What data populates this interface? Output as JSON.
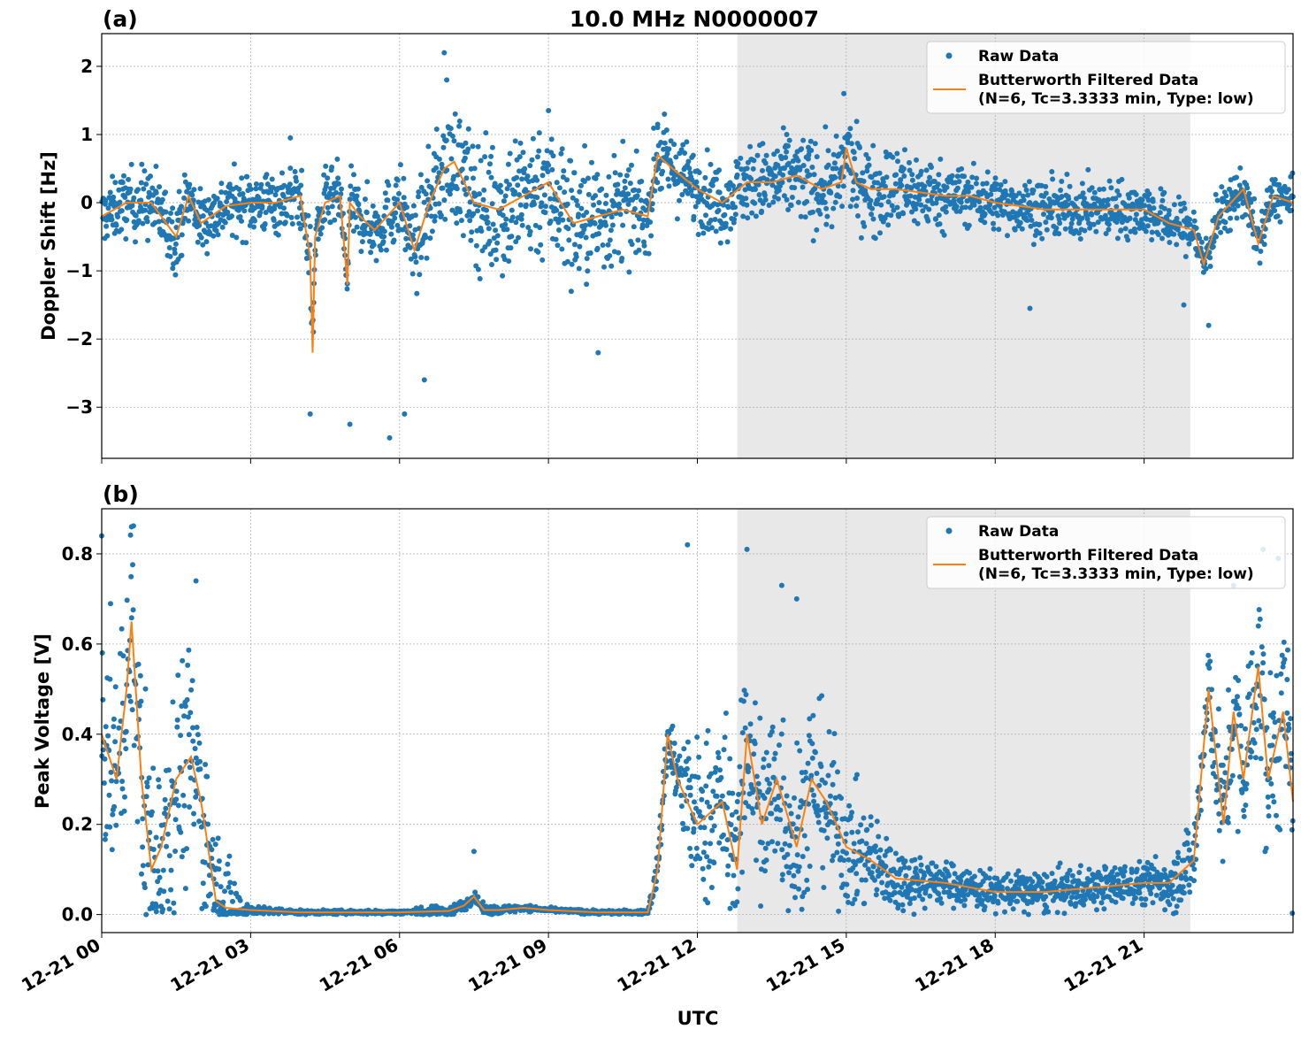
{
  "figure": {
    "title": "10.0 MHz N0000007",
    "xlabel": "UTC",
    "x_ticks": [
      "12-21 00",
      "12-21 03",
      "12-21 06",
      "12-21 09",
      "12-21 12",
      "12-21 15",
      "12-21 18",
      "12-21 21"
    ],
    "shaded_band_hours": [
      12.8,
      21.93
    ],
    "colors": {
      "raw": "#1f77b4",
      "filtered": "#ff7f0e",
      "shade": "#e8e8e8",
      "grid": "#b0b0b0"
    }
  },
  "chart_data": [
    {
      "type": "scatter",
      "panel_label": "(a)",
      "ylabel": "Doppler Shift [Hz]",
      "y_ticks": [
        "2",
        "1",
        "0",
        "−1",
        "−2",
        "−3"
      ],
      "y_tick_values": [
        2,
        1,
        0,
        -1,
        -2,
        -3
      ],
      "xlim_hours": [
        0,
        24
      ],
      "ylim": [
        -3.75,
        2.48
      ],
      "grid": true,
      "legend_position": "top-right",
      "legend": {
        "raw": "Raw Data",
        "filtered_line1": "Butterworth Filtered Data",
        "filtered_line2": "(N=6, Tc=3.3333 min, Type: low)"
      },
      "series": [
        {
          "name": "Butterworth Filtered Data",
          "x_hours": [
            0,
            0.5,
            1,
            1.5,
            1.75,
            2,
            2.5,
            3,
            3.5,
            4,
            4.2,
            4.25,
            4.3,
            4.5,
            4.8,
            4.95,
            5,
            5.2,
            5.5,
            6,
            6.3,
            6.6,
            6.9,
            7.1,
            7.5,
            8,
            8.5,
            9,
            9.5,
            10,
            10.5,
            11,
            11.2,
            11.5,
            12,
            12.5,
            13,
            13.5,
            14,
            14.5,
            14.9,
            15,
            15.2,
            15.5,
            16,
            16.5,
            17,
            17.5,
            18,
            18.5,
            19,
            19.5,
            20,
            20.5,
            21,
            21.5,
            22,
            22.2,
            22.5,
            23,
            23.3,
            23.6,
            24
          ],
          "values": [
            -0.2,
            0.0,
            0.0,
            -0.5,
            0.1,
            -0.3,
            -0.05,
            0.0,
            0.0,
            0.1,
            -0.8,
            -2.2,
            -0.5,
            0.0,
            0.1,
            -1.2,
            0.0,
            -0.2,
            -0.4,
            0.0,
            -0.7,
            0.0,
            0.5,
            0.6,
            0.0,
            -0.1,
            0.1,
            0.3,
            -0.3,
            -0.2,
            -0.1,
            -0.2,
            0.7,
            0.5,
            0.2,
            0.0,
            0.3,
            0.3,
            0.4,
            0.2,
            0.3,
            0.8,
            0.3,
            0.2,
            0.2,
            0.15,
            0.1,
            0.1,
            0.0,
            -0.05,
            -0.1,
            -0.1,
            -0.1,
            -0.1,
            -0.1,
            -0.3,
            -0.4,
            -0.9,
            -0.2,
            0.2,
            -0.6,
            0.1,
            0.0
          ]
        },
        {
          "name": "Raw Data",
          "spread_hz": [
            0.45,
            0.6,
            0.5,
            0.5,
            0.5,
            0.5,
            0.6,
            0.9,
            1.1,
            1.2,
            1.0,
            0.6,
            0.6,
            0.6,
            0.7,
            0.7,
            0.7,
            0.5,
            0.45,
            0.45,
            0.45,
            0.45,
            0.4,
            0.4,
            0.35
          ],
          "spread_note_hours": [
            0,
            1,
            2,
            3,
            4,
            5,
            6,
            7,
            8,
            9,
            10,
            11,
            12,
            13,
            14,
            15,
            16,
            17,
            18,
            19,
            20,
            21,
            22,
            23,
            24
          ],
          "outliers": [
            {
              "x": 6.9,
              "y": 2.2
            },
            {
              "x": 6.95,
              "y": 1.8
            },
            {
              "x": 14.95,
              "y": 1.6
            },
            {
              "x": 4.2,
              "y": -3.1
            },
            {
              "x": 5.0,
              "y": -3.25
            },
            {
              "x": 5.8,
              "y": -3.45
            },
            {
              "x": 6.1,
              "y": -3.1
            },
            {
              "x": 6.5,
              "y": -2.6
            },
            {
              "x": 10.0,
              "y": -2.2
            },
            {
              "x": 18.7,
              "y": -1.55
            },
            {
              "x": 22.3,
              "y": -1.8
            },
            {
              "x": 21.8,
              "y": -1.5
            },
            {
              "x": 3.8,
              "y": 0.95
            },
            {
              "x": 11.2,
              "y": 1.15
            },
            {
              "x": 13.8,
              "y": 1.0
            },
            {
              "x": 10.5,
              "y": 0.9
            }
          ]
        }
      ]
    },
    {
      "type": "scatter",
      "panel_label": "(b)",
      "ylabel": "Peak Voltage [V]",
      "y_ticks": [
        "0.8",
        "0.6",
        "0.4",
        "0.2",
        "0.0"
      ],
      "y_tick_values": [
        0.8,
        0.6,
        0.4,
        0.2,
        0.0
      ],
      "xlim_hours": [
        0,
        24
      ],
      "ylim": [
        -0.04,
        0.9
      ],
      "grid": true,
      "legend_position": "top-right",
      "legend": {
        "raw": "Raw Data",
        "filtered_line1": "Butterworth Filtered Data",
        "filtered_line2": "(N=6, Tc=3.3333 min, Type: low)"
      },
      "series": [
        {
          "name": "Butterworth Filtered Data",
          "x_hours": [
            0,
            0.3,
            0.5,
            0.6,
            0.8,
            1,
            1.2,
            1.5,
            1.8,
            2,
            2.1,
            2.3,
            2.5,
            3,
            4,
            5,
            6,
            7,
            7.3,
            7.5,
            7.7,
            8,
            8.5,
            9,
            10,
            11,
            11.2,
            11.4,
            11.6,
            12,
            12.5,
            12.8,
            13,
            13.3,
            13.6,
            14,
            14.3,
            14.6,
            15,
            15.5,
            16,
            17,
            18,
            19,
            20,
            21,
            21.5,
            22,
            22.3,
            22.6,
            22.8,
            23,
            23.3,
            23.5,
            23.8,
            24
          ],
          "values": [
            0.4,
            0.3,
            0.5,
            0.65,
            0.3,
            0.1,
            0.15,
            0.3,
            0.35,
            0.25,
            0.18,
            0.03,
            0.015,
            0.01,
            0.005,
            0.005,
            0.005,
            0.008,
            0.02,
            0.04,
            0.01,
            0.01,
            0.015,
            0.01,
            0.005,
            0.005,
            0.1,
            0.4,
            0.3,
            0.2,
            0.25,
            0.1,
            0.4,
            0.2,
            0.3,
            0.15,
            0.3,
            0.25,
            0.15,
            0.12,
            0.08,
            0.07,
            0.05,
            0.05,
            0.06,
            0.07,
            0.07,
            0.12,
            0.5,
            0.2,
            0.45,
            0.3,
            0.55,
            0.3,
            0.45,
            0.25
          ]
        },
        {
          "name": "Raw Data",
          "spread_v": [
            0.25,
            0.3,
            0.25,
            0.01,
            0.005,
            0.005,
            0.005,
            0.015,
            0.01,
            0.005,
            0.005,
            0.005,
            0.2,
            0.25,
            0.25,
            0.15,
            0.08,
            0.05,
            0.05,
            0.05,
            0.05,
            0.05,
            0.1,
            0.2,
            0.25
          ],
          "spread_note_hours": [
            0,
            1,
            2,
            3,
            4,
            5,
            6,
            7,
            8,
            9,
            10,
            11,
            12,
            13,
            14,
            15,
            16,
            17,
            18,
            19,
            20,
            21,
            22,
            23,
            24
          ],
          "outliers": [
            {
              "x": 0.0,
              "y": 0.84
            },
            {
              "x": 0.6,
              "y": 0.86
            },
            {
              "x": 1.9,
              "y": 0.74
            },
            {
              "x": 11.8,
              "y": 0.82
            },
            {
              "x": 13.0,
              "y": 0.81
            },
            {
              "x": 13.7,
              "y": 0.73
            },
            {
              "x": 14.0,
              "y": 0.7
            },
            {
              "x": 23.4,
              "y": 0.81
            },
            {
              "x": 23.7,
              "y": 0.79
            },
            {
              "x": 22.8,
              "y": 0.73
            },
            {
              "x": 7.5,
              "y": 0.14
            }
          ]
        }
      ]
    }
  ]
}
